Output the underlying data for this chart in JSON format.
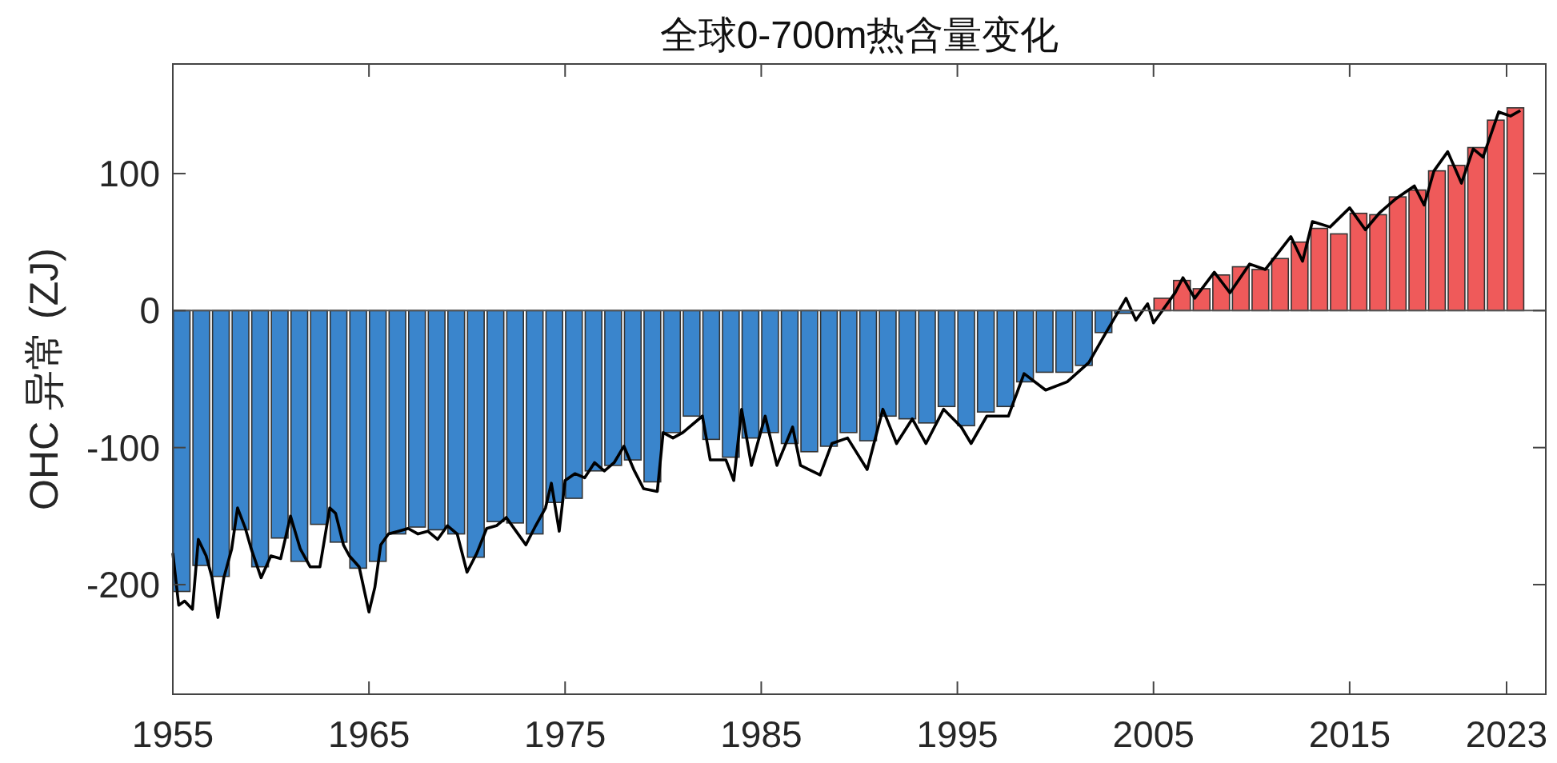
{
  "chart_data": {
    "type": "bar",
    "title": "全球0-700m热含量变化",
    "ylabel": "OHC 异常 (ZJ)",
    "xlim": [
      1955,
      2025
    ],
    "xticks": [
      1955,
      1965,
      1975,
      1985,
      1995,
      2005,
      2015,
      2023
    ],
    "ylim": [
      -280,
      180
    ],
    "yticks": [
      -200,
      -100,
      0,
      100
    ],
    "grid": false,
    "ref_lines": [
      {
        "axis": "y",
        "value": 0,
        "color": "#555555"
      }
    ],
    "series": [
      {
        "x": [
          1955.45,
          1956.45,
          1957.45,
          1958.45,
          1959.45,
          1960.45,
          1961.45,
          1962.45,
          1963.45,
          1964.45,
          1965.45,
          1966.45,
          1967.45,
          1968.45,
          1969.45,
          1970.45,
          1971.45,
          1972.45,
          1973.45,
          1974.45,
          1975.45,
          1976.45,
          1977.45,
          1978.45,
          1979.45,
          1980.45,
          1981.45,
          1982.45,
          1983.45,
          1984.45,
          1985.45,
          1986.45,
          1987.45,
          1988.45,
          1989.45,
          1990.45,
          1991.45,
          1992.45,
          1993.45,
          1994.45,
          1995.45,
          1996.45,
          1997.45,
          1998.45,
          1999.45,
          2000.45,
          2001.45,
          2002.45,
          2003.45,
          2005.45,
          2006.45,
          2007.45,
          2008.45,
          2009.45,
          2010.45,
          2011.45,
          2012.45,
          2013.45,
          2014.45,
          2015.45,
          2016.45,
          2017.45,
          2018.45,
          2019.45,
          2020.45,
          2021.45,
          2022.45,
          2023.45
        ],
        "values": [
          -205,
          -186,
          -194,
          -160,
          -187,
          -166,
          -183,
          -156,
          -169,
          -188,
          -183,
          -163,
          -158,
          -160,
          -163,
          -180,
          -154,
          -155,
          -163,
          -140,
          -137,
          -117,
          -113,
          -109,
          -125,
          -89,
          -77,
          -94,
          -107,
          -93,
          -89,
          -97,
          -103,
          -99,
          -89,
          -95,
          -77,
          -79,
          -82,
          -70,
          -84,
          -74,
          -70,
          -52,
          -45,
          -45,
          -40,
          -16,
          -2,
          9,
          22,
          16,
          26,
          32,
          30,
          38,
          50,
          60,
          56,
          71,
          70,
          83,
          88,
          102,
          106,
          119,
          139,
          148
        ],
        "colors": [
          "#3a85cc",
          "#3a85cc",
          "#3a85cc",
          "#3a85cc",
          "#3a85cc",
          "#3a85cc",
          "#3a85cc",
          "#3a85cc",
          "#3a85cc",
          "#3a85cc",
          "#3a85cc",
          "#3a85cc",
          "#3a85cc",
          "#3a85cc",
          "#3a85cc",
          "#3a85cc",
          "#3a85cc",
          "#3a85cc",
          "#3a85cc",
          "#3a85cc",
          "#3a85cc",
          "#3a85cc",
          "#3a85cc",
          "#3a85cc",
          "#3a85cc",
          "#3a85cc",
          "#3a85cc",
          "#3a85cc",
          "#3a85cc",
          "#3a85cc",
          "#3a85cc",
          "#3a85cc",
          "#3a85cc",
          "#3a85cc",
          "#3a85cc",
          "#3a85cc",
          "#3a85cc",
          "#3a85cc",
          "#3a85cc",
          "#3a85cc",
          "#3a85cc",
          "#3a85cc",
          "#3a85cc",
          "#3a85cc",
          "#3a85cc",
          "#3a85cc",
          "#3a85cc",
          "#3a85cc",
          "#3a85cc",
          "#ef5a5a",
          "#ef5a5a",
          "#ef5a5a",
          "#ef5a5a",
          "#ef5a5a",
          "#ef5a5a",
          "#ef5a5a",
          "#ef5a5a",
          "#ef5a5a",
          "#ef5a5a",
          "#ef5a5a",
          "#ef5a5a",
          "#ef5a5a",
          "#ef5a5a",
          "#ef5a5a",
          "#ef5a5a",
          "#ef5a5a",
          "#ef5a5a",
          "#ef5a5a"
        ]
      },
      {
        "type": "line",
        "color": "#000000",
        "x": [
          1955.0,
          1955.3,
          1955.6,
          1956.0,
          1956.3,
          1956.7,
          1957.0,
          1957.3,
          1957.6,
          1958.0,
          1958.3,
          1958.7,
          1959.0,
          1959.5,
          1960.0,
          1960.5,
          1961.0,
          1961.5,
          1962.0,
          1962.5,
          1963.0,
          1963.3,
          1963.7,
          1964.0,
          1964.5,
          1965.0,
          1965.3,
          1965.6,
          1966.0,
          1966.5,
          1967.0,
          1967.5,
          1968.0,
          1968.5,
          1969.0,
          1969.5,
          1970.0,
          1970.5,
          1971.0,
          1971.5,
          1972.0,
          1972.5,
          1973.0,
          1973.5,
          1974.0,
          1974.3,
          1974.7,
          1975.0,
          1975.5,
          1976.0,
          1976.5,
          1977.0,
          1977.5,
          1978.0,
          1978.5,
          1979.0,
          1979.7,
          1980.0,
          1980.5,
          1981.0,
          1982.0,
          1982.4,
          1983.2,
          1983.6,
          1984.0,
          1984.5,
          1985.2,
          1985.8,
          1986.6,
          1987.0,
          1988.0,
          1988.6,
          1989.4,
          1990.4,
          1991.2,
          1991.9,
          1992.7,
          1993.4,
          1994.3,
          1995.2,
          1995.7,
          1996.5,
          1997.6,
          1998.4,
          1999.5,
          2000.6,
          2001.7,
          2002.5,
          2003.6,
          2004.1,
          2004.7,
          2005.0,
          2006.1,
          2006.5,
          2007.1,
          2008.1,
          2008.9,
          2009.9,
          2010.7,
          2012.0,
          2012.6,
          2013.1,
          2014.0,
          2015.0,
          2015.8,
          2016.5,
          2017.3,
          2018.3,
          2018.8,
          2019.3,
          2020.0,
          2020.7,
          2021.3,
          2021.8,
          2022.6,
          2023.2,
          2023.7
        ],
        "values": [
          -177,
          -215,
          -212,
          -218,
          -167,
          -179,
          -195,
          -224,
          -195,
          -174,
          -144,
          -159,
          -174,
          -195,
          -179,
          -181,
          -150,
          -174,
          -187,
          -187,
          -144,
          -148,
          -171,
          -179,
          -187,
          -220,
          -202,
          -171,
          -163,
          -161,
          -159,
          -163,
          -161,
          -167,
          -157,
          -163,
          -191,
          -177,
          -159,
          -157,
          -151,
          -161,
          -171,
          -157,
          -144,
          -126,
          -161,
          -124,
          -119,
          -122,
          -111,
          -117,
          -111,
          -99,
          -116,
          -130,
          -132,
          -89,
          -93,
          -89,
          -77,
          -109,
          -109,
          -124,
          -72,
          -113,
          -77,
          -113,
          -85,
          -113,
          -120,
          -97,
          -93,
          -116,
          -72,
          -97,
          -79,
          -97,
          -72,
          -85,
          -97,
          -77,
          -77,
          -46,
          -58,
          -52,
          -38,
          -18,
          9,
          -7,
          5,
          -9,
          13,
          24,
          9,
          28,
          13,
          34,
          30,
          54,
          36,
          65,
          61,
          75,
          59,
          71,
          81,
          91,
          77,
          102,
          116,
          93,
          118,
          112,
          145,
          142,
          146
        ]
      }
    ]
  }
}
